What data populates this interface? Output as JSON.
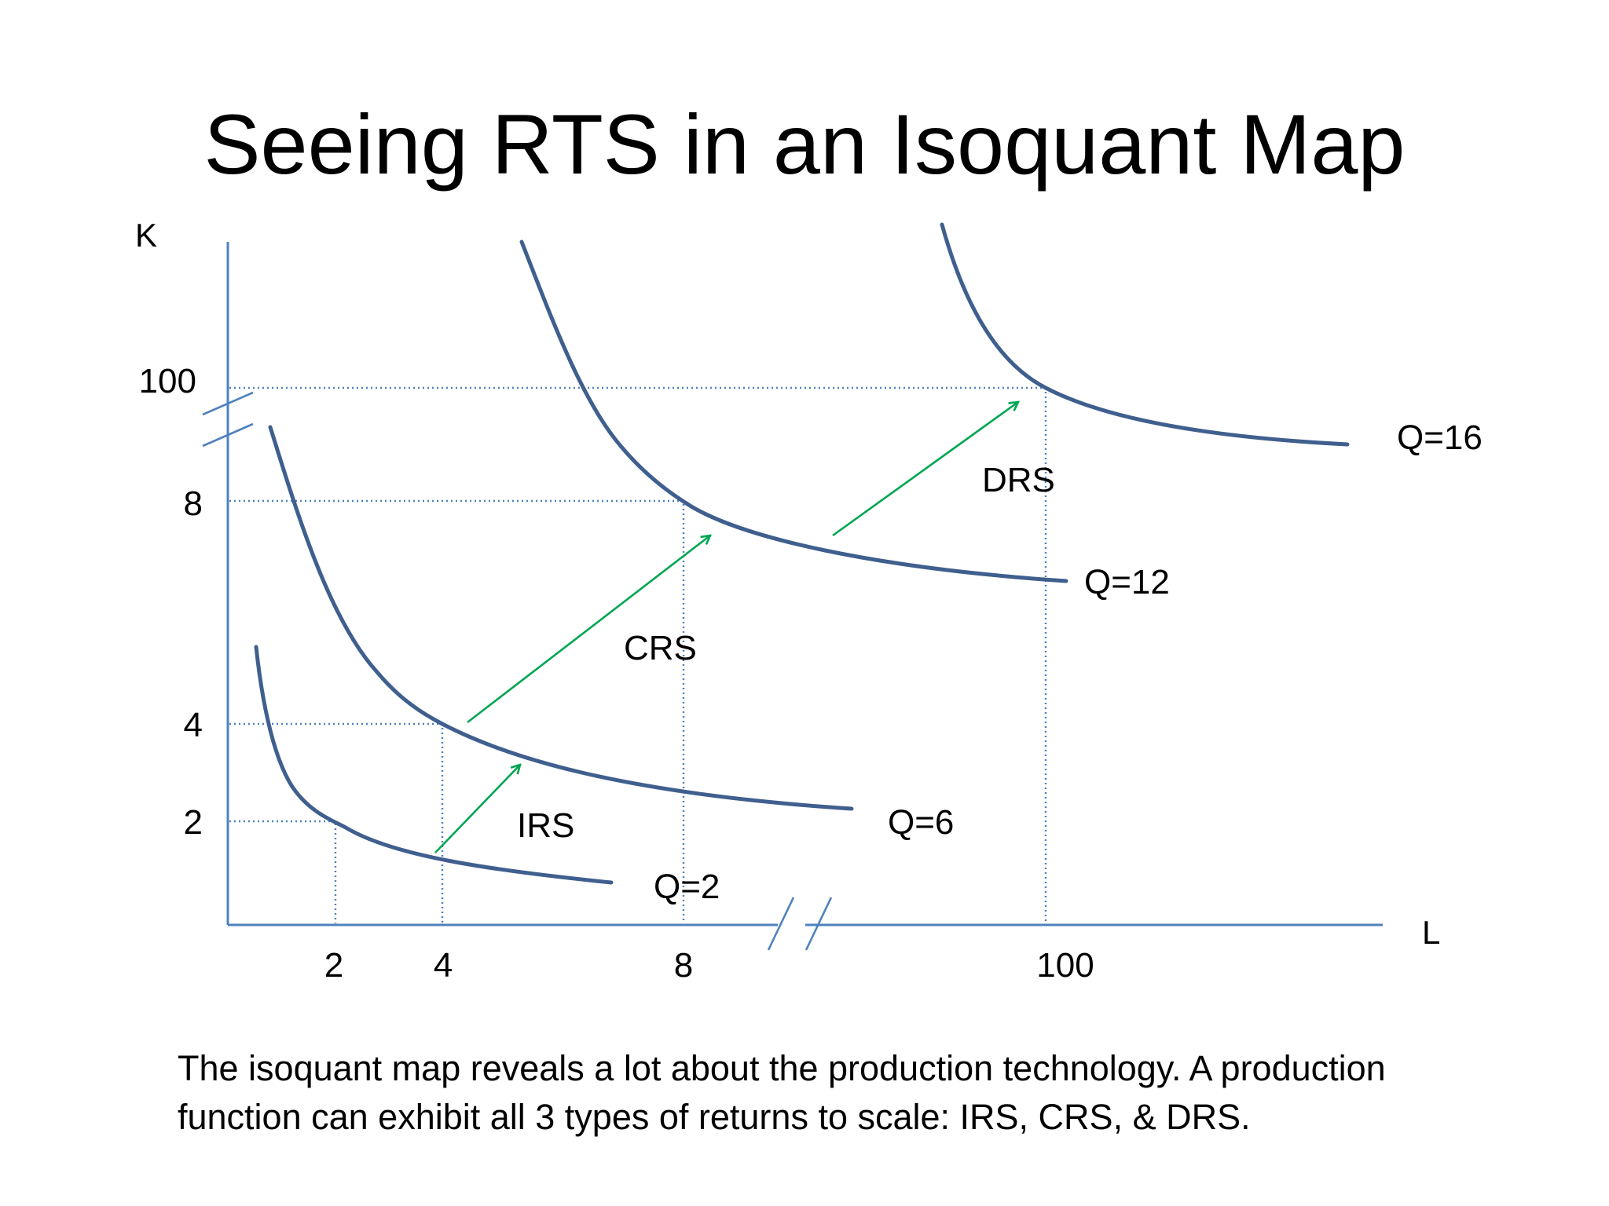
{
  "title": "Seeing RTS in an Isoquant Map",
  "axes": {
    "x_label": "L",
    "y_label": "K",
    "x_ticks": [
      "2",
      "4",
      "8",
      "100"
    ],
    "y_ticks": [
      "100",
      "8",
      "4",
      "2"
    ],
    "x_axis_break": true,
    "y_axis_break": true
  },
  "isoquants": [
    {
      "label": "Q=2"
    },
    {
      "label": "Q=6"
    },
    {
      "label": "Q=12"
    },
    {
      "label": "Q=16"
    }
  ],
  "returns_to_scale": [
    {
      "label": "IRS",
      "from": [
        2,
        2
      ],
      "to": [
        4,
        4
      ],
      "from_output": 2,
      "to_output": 6
    },
    {
      "label": "CRS",
      "from": [
        4,
        4
      ],
      "to": [
        8,
        8
      ],
      "from_output": 6,
      "to_output": 12
    },
    {
      "label": "DRS",
      "from": [
        8,
        8
      ],
      "to": [
        100,
        100
      ],
      "from_output": 12,
      "to_output": 16
    }
  ],
  "caption": {
    "line1": "The isoquant map reveals a lot about the production technology. A production",
    "line2": "function can exhibit all 3 types of returns to scale: IRS, CRS, & DRS."
  },
  "colors": {
    "axis": "#4f81bd",
    "isoquant": "#3f5f8e",
    "arrow": "#00a651",
    "text": "#000000"
  }
}
